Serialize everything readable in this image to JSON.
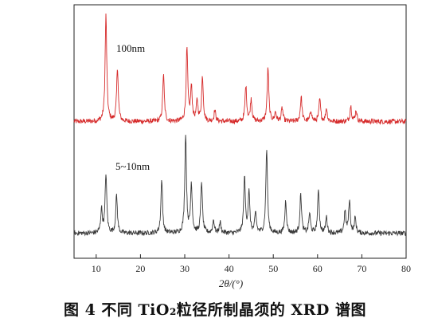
{
  "chart_data": {
    "type": "line",
    "title": "",
    "xlabel": "2θ/(°)",
    "ylabel": "",
    "xlim": [
      5,
      80
    ],
    "xticks": [
      10,
      20,
      30,
      40,
      50,
      60,
      70,
      80
    ],
    "grid": false,
    "legend": "none",
    "series": [
      {
        "name": "100nm",
        "color": "#d62b2b",
        "baseline": 0.05,
        "peaks": [
          {
            "x": 12.2,
            "h": 0.95
          },
          {
            "x": 14.8,
            "h": 0.48
          },
          {
            "x": 25.2,
            "h": 0.42
          },
          {
            "x": 30.5,
            "h": 0.65
          },
          {
            "x": 31.5,
            "h": 0.3
          },
          {
            "x": 32.8,
            "h": 0.18
          },
          {
            "x": 34.0,
            "h": 0.4
          },
          {
            "x": 36.8,
            "h": 0.1
          },
          {
            "x": 43.8,
            "h": 0.32
          },
          {
            "x": 45.0,
            "h": 0.2
          },
          {
            "x": 48.8,
            "h": 0.48
          },
          {
            "x": 50.5,
            "h": 0.08
          },
          {
            "x": 52.0,
            "h": 0.12
          },
          {
            "x": 56.3,
            "h": 0.22
          },
          {
            "x": 58.5,
            "h": 0.1
          },
          {
            "x": 60.5,
            "h": 0.2
          },
          {
            "x": 62.0,
            "h": 0.12
          },
          {
            "x": 67.5,
            "h": 0.14
          },
          {
            "x": 68.7,
            "h": 0.1
          }
        ]
      },
      {
        "name": "5~10nm",
        "color": "#3a3a3a",
        "baseline": 0.05,
        "peaks": [
          {
            "x": 11.2,
            "h": 0.22
          },
          {
            "x": 12.2,
            "h": 0.55
          },
          {
            "x": 14.6,
            "h": 0.35
          },
          {
            "x": 24.8,
            "h": 0.5
          },
          {
            "x": 30.2,
            "h": 0.92
          },
          {
            "x": 31.5,
            "h": 0.45
          },
          {
            "x": 33.8,
            "h": 0.48
          },
          {
            "x": 36.5,
            "h": 0.12
          },
          {
            "x": 38.0,
            "h": 0.1
          },
          {
            "x": 43.5,
            "h": 0.52
          },
          {
            "x": 44.5,
            "h": 0.38
          },
          {
            "x": 46.0,
            "h": 0.18
          },
          {
            "x": 48.5,
            "h": 0.78
          },
          {
            "x": 52.8,
            "h": 0.3
          },
          {
            "x": 56.2,
            "h": 0.36
          },
          {
            "x": 58.2,
            "h": 0.18
          },
          {
            "x": 60.2,
            "h": 0.4
          },
          {
            "x": 62.0,
            "h": 0.15
          },
          {
            "x": 66.2,
            "h": 0.2
          },
          {
            "x": 67.2,
            "h": 0.3
          },
          {
            "x": 68.5,
            "h": 0.14
          }
        ]
      }
    ]
  },
  "caption": "图 4  不同 TiO₂粒径所制晶须的 XRD 谱图"
}
